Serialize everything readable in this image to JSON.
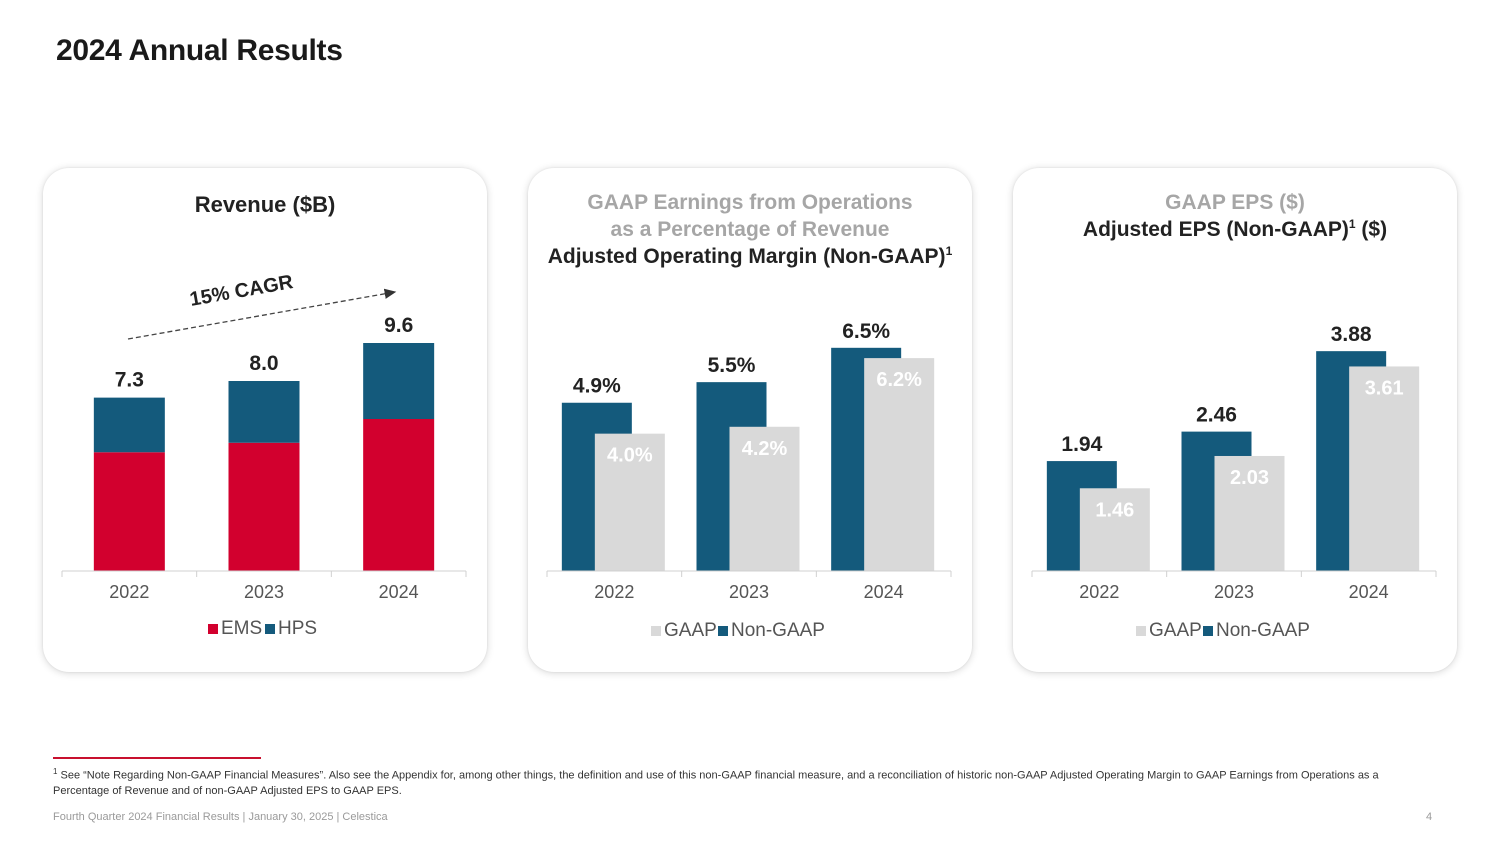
{
  "title": "2024 Annual Results",
  "colors": {
    "ems": "#d2002e",
    "hps": "#145a7c",
    "gaap": "#d9d9d9",
    "nongaap": "#145a7c",
    "accent": "#c8102e"
  },
  "chart_data": [
    {
      "type": "bar",
      "stacked": true,
      "title": "Revenue ($B)",
      "categories": [
        "2022",
        "2023",
        "2024"
      ],
      "series": [
        {
          "name": "EMS",
          "values": [
            5.0,
            5.4,
            6.4
          ]
        },
        {
          "name": "HPS",
          "values": [
            2.3,
            2.6,
            3.2
          ]
        }
      ],
      "totals": [
        7.3,
        8.0,
        9.6
      ],
      "total_labels": [
        "7.3",
        "8.0",
        "9.6"
      ],
      "annotation": "15% CAGR",
      "ylim": [
        0,
        12
      ],
      "legend": "bottom"
    },
    {
      "type": "bar",
      "title_lines": [
        "GAAP Earnings from Operations",
        "as a Percentage of Revenue"
      ],
      "title_bold": "Adjusted Operating Margin (Non-GAAP)",
      "title_sup": "1",
      "categories": [
        "2022",
        "2023",
        "2024"
      ],
      "series": [
        {
          "name": "GAAP",
          "values": [
            4.0,
            4.2,
            6.2
          ],
          "labels": [
            "4.0%",
            "4.2%",
            "6.2%"
          ]
        },
        {
          "name": "Non-GAAP",
          "values": [
            4.9,
            5.5,
            6.5
          ],
          "labels": [
            "4.9%",
            "5.5%",
            "6.5%"
          ]
        }
      ],
      "ylim": [
        0,
        8.3
      ],
      "legend": "bottom"
    },
    {
      "type": "bar",
      "title_lines": [
        "GAAP EPS ($)"
      ],
      "title_bold": "Adjusted EPS (Non-GAAP)",
      "title_sup": "1",
      "title_suffix": " ($)",
      "categories": [
        "2022",
        "2023",
        "2024"
      ],
      "series": [
        {
          "name": "GAAP",
          "values": [
            1.46,
            2.03,
            3.61
          ],
          "labels": [
            "1.46",
            "2.03",
            "3.61"
          ]
        },
        {
          "name": "Non-GAAP",
          "values": [
            1.94,
            2.46,
            3.88
          ],
          "labels": [
            "1.94",
            "2.46",
            "3.88"
          ]
        }
      ],
      "ylim": [
        0,
        5.03
      ],
      "legend": "bottom"
    }
  ],
  "footnote": {
    "marker": "1",
    "text": "See “Note Regarding Non-GAAP Financial Measures”. Also see the Appendix for, among other things, the definition and use of this non-GAAP financial measure, and a reconciliation of historic non-GAAP Adjusted Operating Margin to GAAP Earnings from Operations as a Percentage of Revenue and of non-GAAP Adjusted EPS to GAAP EPS."
  },
  "footer": {
    "text": "Fourth Quarter 2024 Financial Results |  January 30, 2025  |  Celestica",
    "page": "4"
  }
}
